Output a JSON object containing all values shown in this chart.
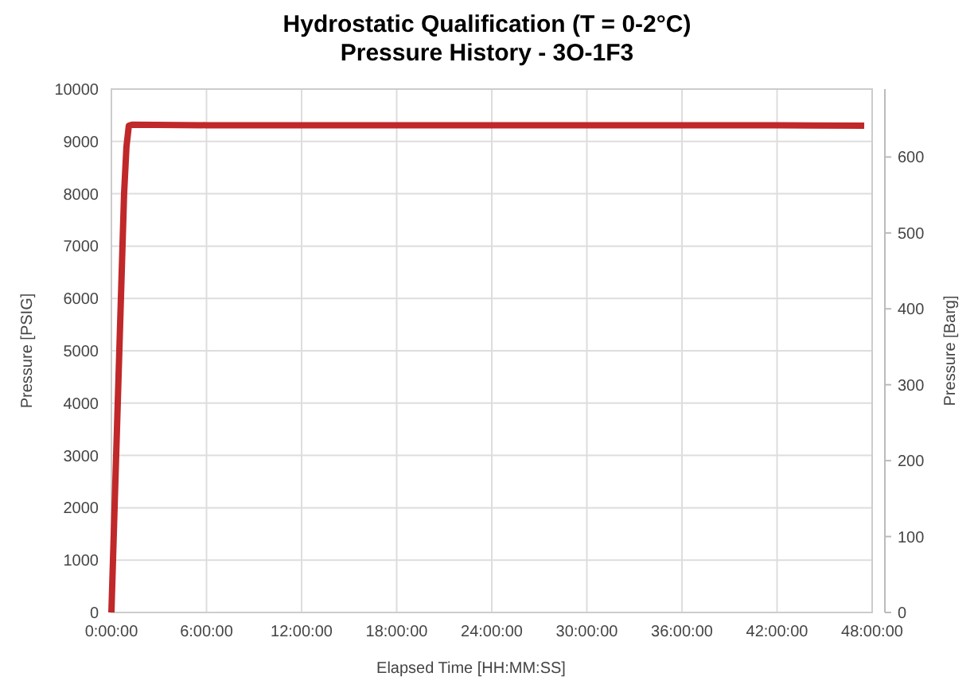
{
  "chart_data": {
    "type": "line",
    "title": "Hydrostatic Qualification (T = 0-2°C)",
    "subtitle": "Pressure History - 3O-1F3",
    "xlabel": "Elapsed Time [HH:MM:SS]",
    "ylabel": "Pressure [PSIG]",
    "y2label": "Pressure [Barg]",
    "x": [
      0,
      0.1,
      0.2,
      0.3,
      0.4,
      0.5,
      0.6,
      0.7,
      0.8,
      0.95,
      1.1,
      1.3,
      6,
      12,
      18,
      24,
      30,
      36,
      42,
      47.5
    ],
    "series": [
      {
        "color": "#c0282a",
        "values": [
          0,
          1000,
          2000,
          3000,
          4000,
          5000,
          6000,
          7000,
          8000,
          8900,
          9300,
          9320,
          9310,
          9310,
          9310,
          9310,
          9310,
          9310,
          9310,
          9300
        ]
      }
    ],
    "xlim": [
      0,
      48
    ],
    "xticks": [
      {
        "value": 0,
        "label": "0:00:00"
      },
      {
        "value": 6,
        "label": "6:00:00"
      },
      {
        "value": 12,
        "label": "12:00:00"
      },
      {
        "value": 18,
        "label": "18:00:00"
      },
      {
        "value": 24,
        "label": "24:00:00"
      },
      {
        "value": 30,
        "label": "30:00:00"
      },
      {
        "value": 36,
        "label": "36:00:00"
      },
      {
        "value": 42,
        "label": "42:00:00"
      },
      {
        "value": 48,
        "label": "48:00:00"
      }
    ],
    "ylim": [
      0,
      10000
    ],
    "yticks": [
      0,
      1000,
      2000,
      3000,
      4000,
      5000,
      6000,
      7000,
      8000,
      9000,
      10000
    ],
    "y2lim": [
      0,
      689.5
    ],
    "y2ticks": [
      0,
      100,
      200,
      300,
      400,
      500,
      600
    ],
    "grid": true,
    "marker": "none",
    "line_style": "solid"
  }
}
